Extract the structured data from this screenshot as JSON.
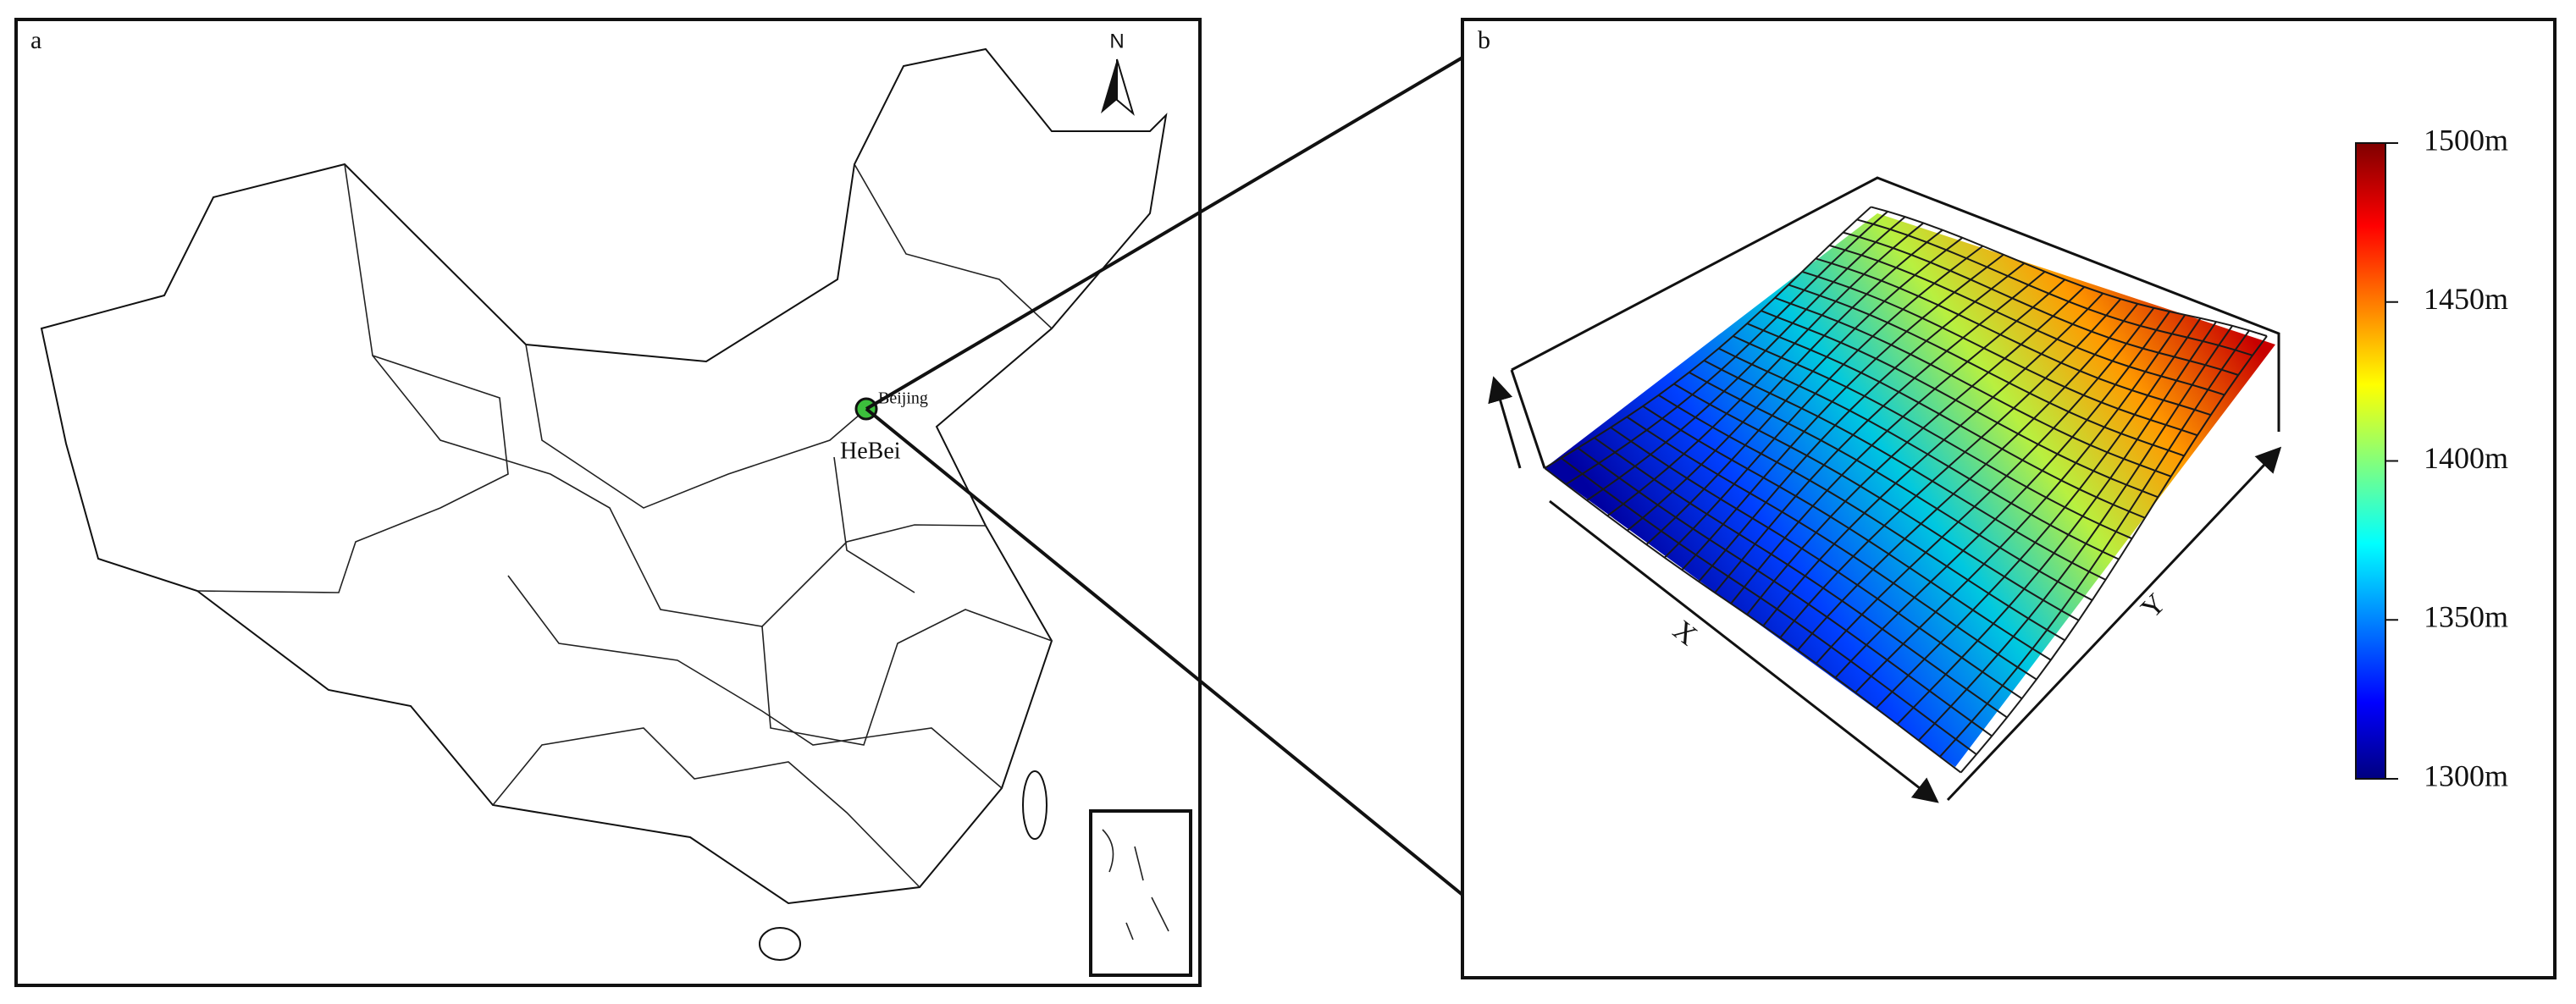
{
  "panel_a": {
    "label": "a",
    "north": "N",
    "city": "Beijing",
    "province": "HeBei"
  },
  "panel_b": {
    "label": "b",
    "x_axis": "X",
    "y_axis": "Y",
    "colorbar": {
      "lim": [
        1300,
        1500
      ],
      "ticks": [
        {
          "value": 1300,
          "label": "1300m"
        },
        {
          "value": 1350,
          "label": "1350m"
        },
        {
          "value": 1400,
          "label": "1400m"
        },
        {
          "value": 1450,
          "label": "1450m"
        },
        {
          "value": 1500,
          "label": "1500m"
        }
      ]
    }
  }
}
